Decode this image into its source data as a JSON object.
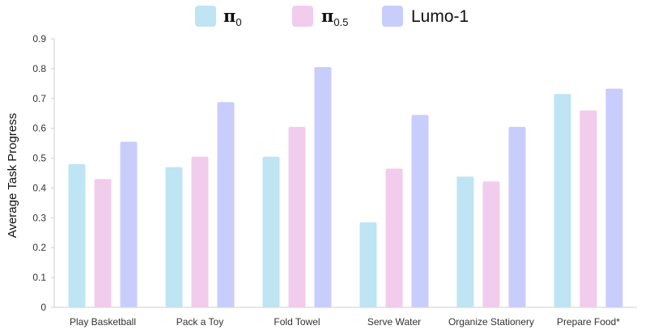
{
  "chart_data": {
    "type": "bar",
    "title": "",
    "xlabel": "",
    "ylabel": "Average Task Progress",
    "ylim": [
      0,
      0.9
    ],
    "yticks": [
      "0",
      "0.1",
      "0.2",
      "0.3",
      "0.4",
      "0.5",
      "0.6",
      "0.7",
      "0.8",
      "0.9"
    ],
    "grid": false,
    "legend_position": "top-center",
    "categories": [
      "Play Basketball",
      "Pack a Toy",
      "Fold Towel",
      "Serve Water",
      "Organize Stationery",
      "Prepare Food*"
    ],
    "series": [
      {
        "name": "π0",
        "label_main": "π",
        "label_sub": "0",
        "color": "#bfe4f3",
        "values": [
          0.48,
          0.47,
          0.505,
          0.285,
          0.438,
          0.715
        ]
      },
      {
        "name": "π0.5",
        "label_main": "π",
        "label_sub": "0.5",
        "color": "#f1ccec",
        "values": [
          0.43,
          0.505,
          0.605,
          0.465,
          0.422,
          0.66
        ]
      },
      {
        "name": "Lumo-1",
        "label_main": "Lumo-1",
        "label_sub": "",
        "color": "#c9cdfb",
        "values": [
          0.555,
          0.688,
          0.805,
          0.645,
          0.605,
          0.733
        ]
      }
    ]
  }
}
